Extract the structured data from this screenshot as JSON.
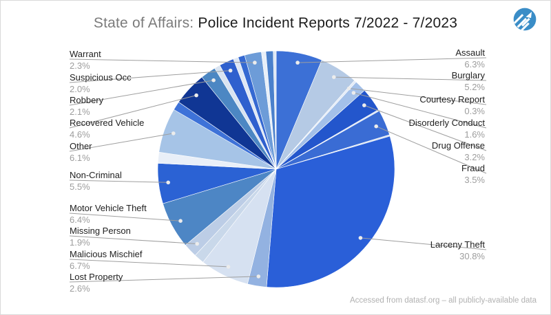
{
  "title": {
    "prefix": "State of Affairs: ",
    "main": "Police Incident Reports 7/2022 - 7/2023"
  },
  "attribution": "Accessed from datasf.org – all publicly-available data",
  "logo": {
    "color": "#3A8DC7",
    "stripe_color": "#ffffff"
  },
  "chart_data": {
    "type": "pie",
    "title": "State of Affairs: Police Incident Reports 7/2022 - 7/2023",
    "start_angle_deg": 0,
    "direction": "clockwise",
    "labels_style": "callout",
    "leader_line_color": "#9e9e9e",
    "label_color": "#212121",
    "pct_color": "#9d9d9d",
    "slices": [
      {
        "label": "Assault",
        "pct": "6.3%",
        "value": 6.3,
        "color": "#3C70D6",
        "labeled": true
      },
      {
        "label": "Burglary",
        "pct": "5.2%",
        "value": 5.2,
        "color": "#B5CAE5",
        "labeled": true
      },
      {
        "label": "Courtesy Report",
        "pct": "0.3%",
        "value": 0.3,
        "color": "#E3EBF7",
        "labeled": true
      },
      {
        "label": "Disorderly Conduct",
        "pct": "1.6%",
        "value": 1.6,
        "color": "#A3C0E9",
        "labeled": true
      },
      {
        "label": "Drug Offense",
        "pct": "3.2%",
        "value": 3.2,
        "color": "#2356CC",
        "labeled": true
      },
      {
        "label": "",
        "pct": "",
        "value": 0.2,
        "color": "#DCE6F4",
        "labeled": false
      },
      {
        "label": "Fraud",
        "pct": "3.5%",
        "value": 3.5,
        "color": "#3A6CD4",
        "labeled": true
      },
      {
        "label": "",
        "pct": "",
        "value": 0.2,
        "color": "#D5E1F1",
        "labeled": false
      },
      {
        "label": "Larceny Theft",
        "pct": "30.8%",
        "value": 30.8,
        "color": "#2A5FD8",
        "labeled": true
      },
      {
        "label": "Lost Property",
        "pct": "2.6%",
        "value": 2.6,
        "color": "#93B2E1",
        "labeled": true
      },
      {
        "label": "Malicious Mischief",
        "pct": "6.7%",
        "value": 6.7,
        "color": "#D6E1F1",
        "labeled": true
      },
      {
        "label": "",
        "pct": "",
        "value": 1.4,
        "color": "#C9D8EA",
        "labeled": false
      },
      {
        "label": "Missing Person",
        "pct": "1.9%",
        "value": 1.9,
        "color": "#BCCDE6",
        "labeled": true
      },
      {
        "label": "Motor Vehicle Theft",
        "pct": "6.4%",
        "value": 6.4,
        "color": "#4D86C5",
        "labeled": true
      },
      {
        "label": "Non-Criminal",
        "pct": "5.5%",
        "value": 5.5,
        "color": "#2B62D4",
        "labeled": true
      },
      {
        "label": "",
        "pct": "",
        "value": 1.5,
        "color": "#E9EFF8",
        "labeled": false
      },
      {
        "label": "Other",
        "pct": "6.1%",
        "value": 6.1,
        "color": "#A6C4E7",
        "labeled": true
      },
      {
        "label": "",
        "pct": "",
        "value": 1.2,
        "color": "#3E72D8",
        "labeled": false
      },
      {
        "label": "Recovered Vehicle",
        "pct": "4.6%",
        "value": 4.6,
        "color": "#103694",
        "labeled": true
      },
      {
        "label": "Robbery",
        "pct": "2.1%",
        "value": 2.1,
        "color": "#4C87C3",
        "labeled": true
      },
      {
        "label": "",
        "pct": "",
        "value": 0.8,
        "color": "#D9E4F1",
        "labeled": false
      },
      {
        "label": "Suspicious Occ",
        "pct": "2.0%",
        "value": 2.0,
        "color": "#2F60CE",
        "labeled": true
      },
      {
        "label": "",
        "pct": "",
        "value": 0.7,
        "color": "#DFE8F5",
        "labeled": false
      },
      {
        "label": "",
        "pct": "",
        "value": 0.9,
        "color": "#3569D2",
        "labeled": false
      },
      {
        "label": "Warrant",
        "pct": "2.3%",
        "value": 2.3,
        "color": "#6D9CD8",
        "labeled": true
      },
      {
        "label": "",
        "pct": "",
        "value": 0.6,
        "color": "#E8EFF8",
        "labeled": false
      },
      {
        "label": "",
        "pct": "",
        "value": 1.0,
        "color": "#4A80CC",
        "labeled": false
      },
      {
        "label": "",
        "pct": "",
        "value": 0.4,
        "color": "#DDE7F4",
        "labeled": false
      }
    ]
  }
}
